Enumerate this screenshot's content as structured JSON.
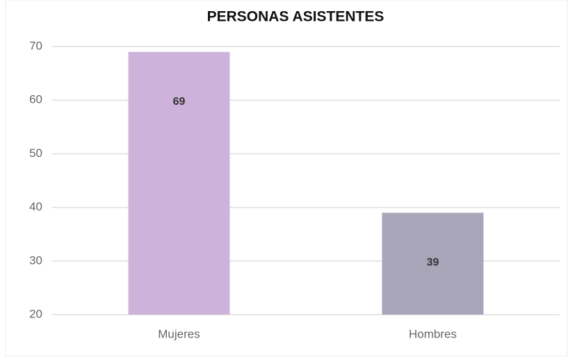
{
  "chart_data": {
    "type": "bar",
    "title": "PERSONAS ASISTENTES",
    "categories": [
      "Mujeres",
      "Hombres"
    ],
    "values": [
      69,
      39
    ],
    "colors": [
      "#cdb3dc",
      "#a9a6ba"
    ],
    "ylim": [
      20,
      70
    ],
    "yticks": [
      20,
      30,
      40,
      50,
      60,
      70
    ],
    "grid": true
  }
}
